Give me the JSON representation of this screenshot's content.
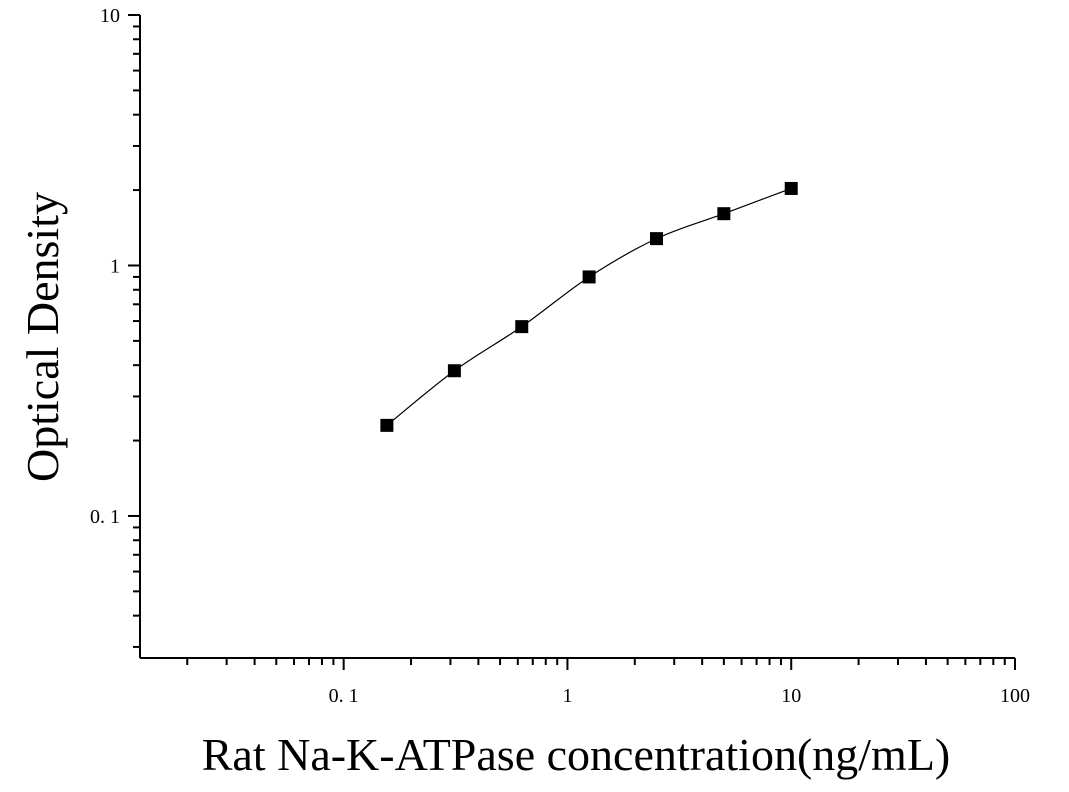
{
  "chart_data": {
    "type": "scatter",
    "title": "",
    "xlabel": "Rat Na-K-ATPase concentration(ng/mL)",
    "ylabel": "Optical Density",
    "x_scale": "log",
    "y_scale": "log",
    "xlim": [
      0.0123,
      100
    ],
    "ylim": [
      0.0271,
      10
    ],
    "x_ticks": [
      {
        "value": 0.1,
        "label": "0. 1"
      },
      {
        "value": 1,
        "label": "1"
      },
      {
        "value": 10,
        "label": "10"
      },
      {
        "value": 100,
        "label": "100"
      }
    ],
    "y_ticks": [
      {
        "value": 0.1,
        "label": "0. 1"
      },
      {
        "value": 1,
        "label": "1"
      },
      {
        "value": 10,
        "label": "10"
      }
    ],
    "grid": false,
    "legend": "none",
    "series": [
      {
        "marker": "square",
        "color": "#000000",
        "x": [
          0.156,
          0.3125,
          0.625,
          1.25,
          2.5,
          5,
          10
        ],
        "y": [
          0.23,
          0.38,
          0.57,
          0.9,
          1.28,
          1.61,
          2.03
        ],
        "fit_curve": true
      }
    ]
  }
}
